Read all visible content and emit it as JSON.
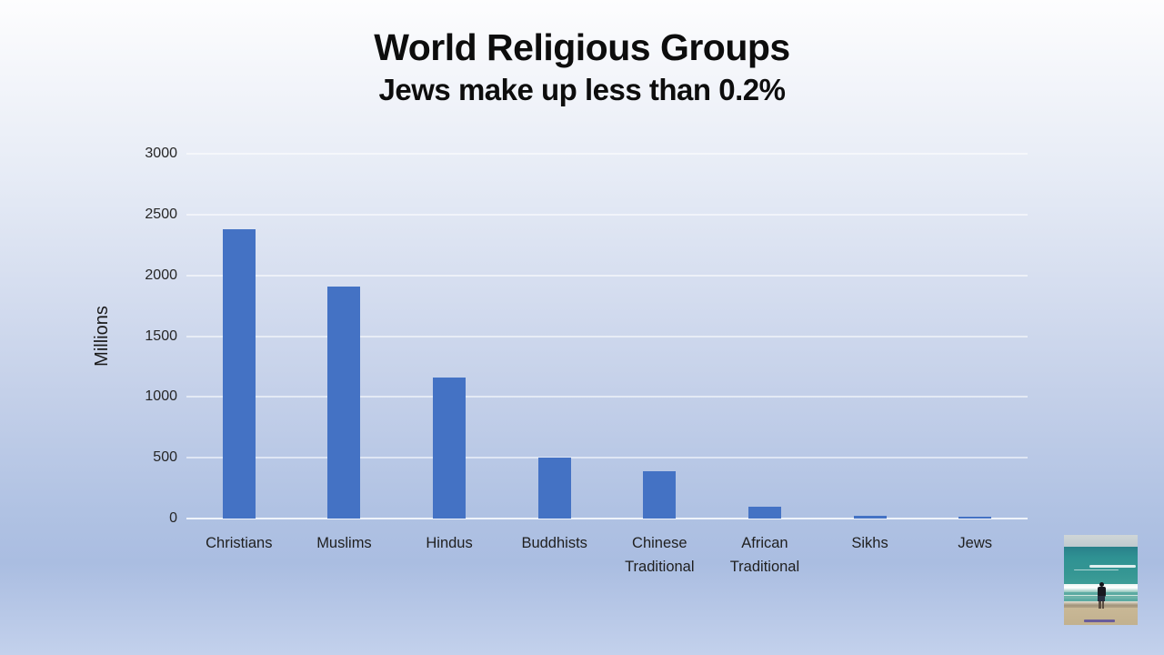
{
  "slide": {
    "title": "World Religious Groups",
    "subtitle": "Jews make up less than 0.2%"
  },
  "chart_data": {
    "type": "bar",
    "title": "World Religious Groups",
    "subtitle": "Jews make up less than 0.2%",
    "categories": [
      "Christians",
      "Muslims",
      "Hindus",
      "Buddhists",
      "Chinese Traditional",
      "African Traditional",
      "Sikhs",
      "Jews"
    ],
    "values": [
      2380,
      1910,
      1160,
      505,
      390,
      100,
      25,
      15
    ],
    "xlabel": "",
    "ylabel": "Millions",
    "ylim": [
      0,
      3000
    ],
    "yticks": [
      0,
      500,
      1000,
      1500,
      2000,
      2500,
      3000
    ],
    "bar_color": "#4472c4",
    "grid": true,
    "legend_position": "none"
  },
  "photo": {
    "subject": "person standing on beach shoreline facing the ocean"
  }
}
